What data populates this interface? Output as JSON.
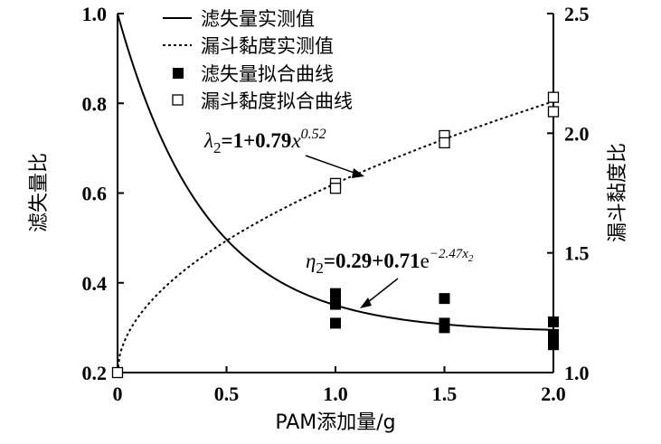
{
  "chart_data": {
    "type": "scatter",
    "xlabel": "PAM添加量/g",
    "ylabel_left": "滤失量比",
    "ylabel_right": "漏斗黏度比",
    "x_ticks": [
      "0",
      "0.5",
      "1.0",
      "1.5",
      "2.0"
    ],
    "y_left_ticks": [
      "0.2",
      "0.4",
      "0.6",
      "0.8",
      "1.0"
    ],
    "y_right_ticks": [
      "1.0",
      "1.5",
      "2.0",
      "2.5"
    ],
    "xlim": [
      0,
      2.0
    ],
    "ylim_left": [
      0.2,
      1.0
    ],
    "ylim_right": [
      1.0,
      2.5
    ],
    "legend_position": "top-right",
    "legend": [
      "滤失量实测值",
      "漏斗黏度实测值",
      "滤失量拟合曲线",
      "漏斗黏度拟合曲线"
    ],
    "series": [
      {
        "name": "滤失量实测值",
        "axis": "left",
        "style": "solid-line",
        "formula": "0.29+0.71*exp(-2.47*x)"
      },
      {
        "name": "漏斗黏度实测值",
        "axis": "right",
        "style": "dotted-line",
        "formula": "1+0.79*x^0.52"
      },
      {
        "name": "滤失量拟合曲线",
        "axis": "left",
        "style": "filled-square",
        "points": [
          [
            1.0,
            0.376
          ],
          [
            1.0,
            0.352
          ],
          [
            1.0,
            0.31
          ],
          [
            1.5,
            0.365
          ],
          [
            1.5,
            0.31
          ],
          [
            1.5,
            0.3
          ],
          [
            2.0,
            0.313
          ],
          [
            2.0,
            0.285
          ],
          [
            2.0,
            0.272
          ],
          [
            2.0,
            0.262
          ]
        ]
      },
      {
        "name": "漏斗黏度拟合曲线",
        "axis": "right",
        "style": "open-square",
        "points": [
          [
            0,
            1.0
          ],
          [
            1.0,
            1.79
          ],
          [
            1.0,
            1.77
          ],
          [
            1.5,
            1.99
          ],
          [
            1.5,
            1.96
          ],
          [
            2.0,
            2.15
          ],
          [
            2.0,
            2.09
          ]
        ]
      }
    ],
    "annotations": [
      {
        "label": "λ2=1+0.79x^0.52",
        "target_series": "漏斗黏度实测值",
        "x": 1.15
      },
      {
        "label": "η2=0.29+0.71e^-2.47x2",
        "target_series": "滤失量实测值",
        "x": 1.15
      }
    ]
  }
}
